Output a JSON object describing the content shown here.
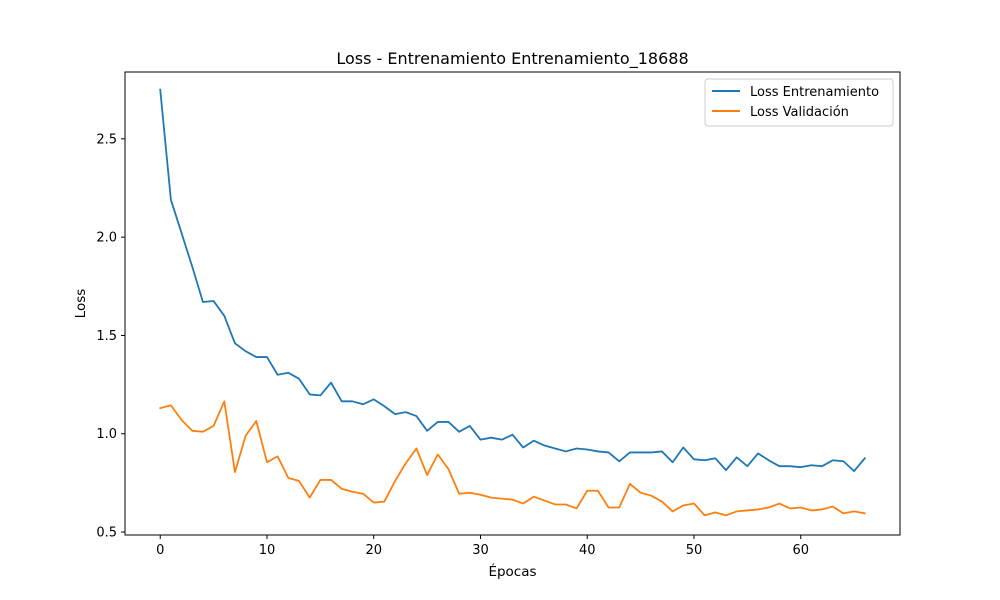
{
  "chart_data": {
    "type": "line",
    "title": "Loss - Entrenamiento Entrenamiento_18688",
    "xlabel": "Épocas",
    "ylabel": "Loss",
    "xlim": [
      -3.3,
      69.3
    ],
    "ylim": [
      0.485,
      2.84
    ],
    "xticks": [
      0,
      10,
      20,
      30,
      40,
      50,
      60
    ],
    "yticks": [
      0.5,
      1.0,
      1.5,
      2.0,
      2.5
    ],
    "ytick_labels": [
      "0.5",
      "1.0",
      "1.5",
      "2.0",
      "2.5"
    ],
    "grid": false,
    "legend_position": "top-right",
    "x": [
      0,
      1,
      2,
      3,
      4,
      5,
      6,
      7,
      8,
      9,
      10,
      11,
      12,
      13,
      14,
      15,
      16,
      17,
      18,
      19,
      20,
      21,
      22,
      23,
      24,
      25,
      26,
      27,
      28,
      29,
      30,
      31,
      32,
      33,
      34,
      35,
      36,
      37,
      38,
      39,
      40,
      41,
      42,
      43,
      44,
      45,
      46,
      47,
      48,
      49,
      50,
      51,
      52,
      53,
      54,
      55,
      56,
      57,
      58,
      59,
      60,
      61,
      62,
      63,
      64,
      65,
      66
    ],
    "series": [
      {
        "name": "Loss Entrenamiento",
        "color": "#1f77b4",
        "values": [
          2.75,
          2.19,
          2.02,
          1.85,
          1.67,
          1.675,
          1.6,
          1.46,
          1.42,
          1.39,
          1.39,
          1.3,
          1.31,
          1.28,
          1.2,
          1.195,
          1.26,
          1.165,
          1.165,
          1.15,
          1.175,
          1.14,
          1.1,
          1.11,
          1.09,
          1.015,
          1.06,
          1.06,
          1.01,
          1.04,
          0.97,
          0.98,
          0.97,
          0.995,
          0.93,
          0.965,
          0.94,
          0.925,
          0.91,
          0.925,
          0.92,
          0.91,
          0.905,
          0.86,
          0.905,
          0.905,
          0.905,
          0.91,
          0.855,
          0.93,
          0.87,
          0.865,
          0.875,
          0.815,
          0.88,
          0.835,
          0.9,
          0.865,
          0.835,
          0.835,
          0.83,
          0.84,
          0.835,
          0.865,
          0.86,
          0.81,
          0.875
        ]
      },
      {
        "name": "Loss Validación",
        "color": "#ff7f0e",
        "values": [
          1.13,
          1.145,
          1.07,
          1.015,
          1.01,
          1.04,
          1.165,
          0.805,
          0.99,
          1.065,
          0.855,
          0.885,
          0.775,
          0.76,
          0.675,
          0.765,
          0.765,
          0.72,
          0.705,
          0.695,
          0.65,
          0.655,
          0.76,
          0.85,
          0.925,
          0.79,
          0.895,
          0.82,
          0.695,
          0.7,
          0.69,
          0.675,
          0.67,
          0.665,
          0.645,
          0.68,
          0.66,
          0.64,
          0.64,
          0.62,
          0.71,
          0.71,
          0.625,
          0.625,
          0.745,
          0.7,
          0.685,
          0.655,
          0.605,
          0.635,
          0.645,
          0.585,
          0.6,
          0.585,
          0.605,
          0.61,
          0.615,
          0.625,
          0.645,
          0.62,
          0.625,
          0.61,
          0.615,
          0.63,
          0.595,
          0.605,
          0.595
        ]
      }
    ]
  }
}
